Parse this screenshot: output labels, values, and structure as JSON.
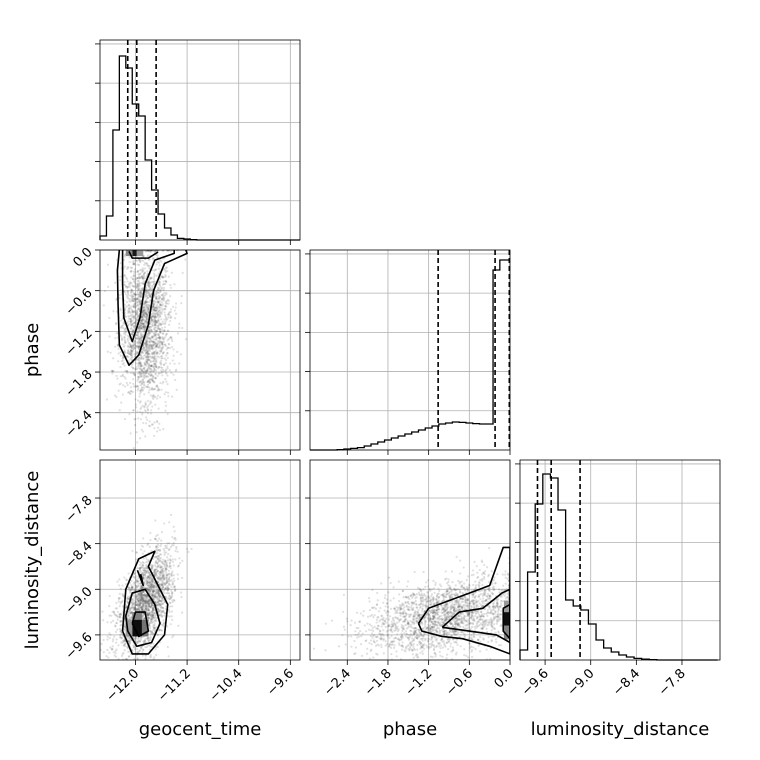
{
  "chart_data": {
    "type": "corner",
    "params": [
      "geocent_time",
      "phase",
      "luminosity_distance"
    ],
    "axis_labels": {
      "x": [
        "geocent_time",
        "phase",
        "luminosity_distance"
      ],
      "y": [
        "",
        "phase",
        "luminosity_distance"
      ]
    },
    "grid": true,
    "ranges": {
      "geocent_time": [
        -12.55,
        -9.45
      ],
      "phase": [
        -2.95,
        0.0
      ],
      "luminosity_distance": [
        -9.93,
        -7.3
      ]
    },
    "ticks": {
      "geocent_time": [
        "−12.0",
        "−11.2",
        "−10.4",
        "−9.6"
      ],
      "phase": [
        "−2.4",
        "−1.8",
        "−1.2",
        "−0.6",
        "0.0"
      ],
      "luminosity_distance": [
        "−9.6",
        "−9.0",
        "−8.4",
        "−7.8"
      ]
    },
    "tick_values": {
      "geocent_time": [
        -12.0,
        -11.2,
        -10.4,
        -9.6
      ],
      "phase": [
        -2.4,
        -1.8,
        -1.2,
        -0.6,
        0.0
      ],
      "luminosity_distance": [
        -9.6,
        -9.0,
        -8.4,
        -7.8
      ]
    },
    "quantiles": {
      "geocent_time": [
        -12.12,
        -11.98,
        -11.68
      ],
      "phase": [
        -1.06,
        -0.22,
        -0.01
      ],
      "luminosity_distance": [
        -9.7,
        -9.52,
        -9.14
      ]
    },
    "histograms": {
      "geocent_time": {
        "edges": [
          -12.55,
          -12.45,
          -12.35,
          -12.25,
          -12.15,
          -12.05,
          -11.95,
          -11.85,
          -11.75,
          -11.65,
          -11.55,
          -11.45,
          -11.35,
          -11.25,
          -11.15,
          -11.05,
          -10.95,
          -10.85,
          -10.75,
          -10.65,
          -10.55,
          -10.45,
          -10.35,
          -10.25,
          -10.15,
          -10.05,
          -9.95,
          -9.85,
          -9.75,
          -9.65,
          -9.55,
          -9.45
        ],
        "counts": [
          0.02,
          0.12,
          0.55,
          0.92,
          0.86,
          0.68,
          0.62,
          0.4,
          0.25,
          0.13,
          0.06,
          0.025,
          0.008,
          0.005,
          0.002,
          0,
          0,
          0,
          0,
          0,
          0,
          0,
          0,
          0,
          0,
          0,
          0,
          0,
          0,
          0,
          0
        ]
      },
      "phase": {
        "edges": [
          -2.95,
          -2.85,
          -2.75,
          -2.65,
          -2.55,
          -2.45,
          -2.35,
          -2.25,
          -2.15,
          -2.05,
          -1.95,
          -1.85,
          -1.75,
          -1.65,
          -1.55,
          -1.45,
          -1.35,
          -1.25,
          -1.15,
          -1.05,
          -0.95,
          -0.85,
          -0.75,
          -0.65,
          -0.55,
          -0.45,
          -0.35,
          -0.25,
          -0.15,
          -0.05,
          0.0
        ],
        "counts": [
          0,
          0,
          0,
          0,
          0.002,
          0.005,
          0.008,
          0.012,
          0.02,
          0.03,
          0.04,
          0.05,
          0.06,
          0.07,
          0.08,
          0.09,
          0.1,
          0.11,
          0.12,
          0.13,
          0.135,
          0.14,
          0.138,
          0.135,
          0.132,
          0.13,
          0.13,
          0.9,
          0.95,
          0.95
        ]
      },
      "luminosity_distance": {
        "edges": [
          -9.93,
          -9.83,
          -9.73,
          -9.63,
          -9.53,
          -9.43,
          -9.33,
          -9.23,
          -9.13,
          -9.03,
          -8.93,
          -8.83,
          -8.73,
          -8.63,
          -8.53,
          -8.43,
          -8.33,
          -8.23,
          -8.13,
          -8.03,
          -7.93,
          -7.83,
          -7.73,
          -7.63,
          -7.53,
          -7.43,
          -7.33
        ],
        "counts": [
          0.05,
          0.44,
          0.78,
          0.93,
          0.91,
          0.75,
          0.3,
          0.27,
          0.25,
          0.18,
          0.1,
          0.06,
          0.04,
          0.025,
          0.015,
          0.008,
          0.004,
          0.002,
          0,
          0,
          0,
          0,
          0,
          0,
          0,
          0
        ]
      }
    },
    "scatter_spread": {
      "geocent_time__phase": {
        "center": [
          -11.85,
          -1.1
        ],
        "sd": [
          0.2,
          0.6
        ]
      },
      "geocent_time__luminosity_distance": {
        "center": [
          -11.85,
          -9.2
        ],
        "sd": [
          0.22,
          0.35
        ],
        "corr": 0.55
      },
      "phase__luminosity_distance": {
        "center": [
          -0.9,
          -9.35
        ],
        "sd": [
          0.6,
          0.25
        ],
        "corr": 0.4
      }
    },
    "contours": {
      "geocent_time__phase": [
        [
          [
            -12.25,
            0.0
          ],
          [
            -12.28,
            -0.3
          ],
          [
            -12.27,
            -0.8
          ],
          [
            -12.25,
            -1.4
          ],
          [
            -12.1,
            -1.7
          ],
          [
            -11.95,
            -1.55
          ],
          [
            -11.8,
            -1.1
          ],
          [
            -11.72,
            -0.6
          ],
          [
            -11.55,
            -0.2
          ],
          [
            -11.2,
            -0.05
          ],
          [
            -11.22,
            0.0
          ]
        ],
        [
          [
            -12.2,
            0.0
          ],
          [
            -12.2,
            -0.5
          ],
          [
            -12.18,
            -1.0
          ],
          [
            -12.05,
            -1.35
          ],
          [
            -11.93,
            -1.0
          ],
          [
            -11.85,
            -0.5
          ],
          [
            -11.7,
            -0.15
          ],
          [
            -11.4,
            -0.05
          ],
          [
            -11.4,
            0.0
          ]
        ],
        [
          [
            -12.1,
            -0.02
          ],
          [
            -12.05,
            -0.12
          ],
          [
            -11.8,
            -0.12
          ],
          [
            -11.65,
            -0.03
          ]
        ]
      ],
      "geocent_time__luminosity_distance": [
        [
          [
            -12.2,
            -9.55
          ],
          [
            -12.05,
            -9.85
          ],
          [
            -11.8,
            -9.85
          ],
          [
            -11.55,
            -9.6
          ],
          [
            -11.5,
            -9.2
          ],
          [
            -11.65,
            -8.95
          ],
          [
            -11.8,
            -8.7
          ],
          [
            -11.7,
            -8.5
          ],
          [
            -11.95,
            -8.6
          ],
          [
            -12.15,
            -9.0
          ],
          [
            -12.2,
            -9.55
          ]
        ],
        [
          [
            -12.12,
            -9.55
          ],
          [
            -11.98,
            -9.75
          ],
          [
            -11.75,
            -9.7
          ],
          [
            -11.62,
            -9.45
          ],
          [
            -11.7,
            -9.2
          ],
          [
            -11.85,
            -9.0
          ],
          [
            -12.05,
            -9.05
          ],
          [
            -12.15,
            -9.35
          ],
          [
            -12.12,
            -9.55
          ]
        ],
        [
          [
            -11.97,
            -8.75
          ],
          [
            -11.88,
            -8.95
          ],
          [
            -11.92,
            -8.8
          ]
        ],
        [
          [
            -12.05,
            -9.45
          ],
          [
            -11.95,
            -9.62
          ],
          [
            -11.8,
            -9.55
          ],
          [
            -11.85,
            -9.3
          ],
          [
            -12.0,
            -9.3
          ],
          [
            -12.05,
            -9.45
          ]
        ]
      ],
      "phase__luminosity_distance": [
        [
          [
            -1.35,
            -9.45
          ],
          [
            -1.2,
            -9.25
          ],
          [
            -0.9,
            -9.15
          ],
          [
            -0.6,
            -9.05
          ],
          [
            -0.3,
            -8.95
          ],
          [
            -0.1,
            -8.45
          ],
          [
            0.0,
            -8.45
          ],
          [
            0.0,
            -9.85
          ],
          [
            -0.3,
            -9.75
          ],
          [
            -0.7,
            -9.65
          ],
          [
            -1.0,
            -9.62
          ],
          [
            -1.3,
            -9.55
          ],
          [
            -1.35,
            -9.45
          ]
        ],
        [
          [
            -1.0,
            -9.5
          ],
          [
            -0.75,
            -9.3
          ],
          [
            -0.4,
            -9.25
          ],
          [
            -0.12,
            -9.05
          ],
          [
            0.0,
            -9.0
          ],
          [
            0.0,
            -9.7
          ],
          [
            -0.2,
            -9.6
          ],
          [
            -0.6,
            -9.55
          ],
          [
            -1.0,
            -9.5
          ]
        ],
        [
          [
            -0.1,
            -9.25
          ],
          [
            0.0,
            -9.2
          ],
          [
            0.0,
            -9.65
          ],
          [
            -0.1,
            -9.55
          ],
          [
            -0.1,
            -9.25
          ]
        ]
      ]
    },
    "density_cells": {
      "geocent_time__phase": [
        {
          "x": [
            -12.05,
            -11.98
          ],
          "y": [
            -0.09,
            0.0
          ],
          "level": 0.9
        },
        {
          "x": [
            -12.15,
            -12.05
          ],
          "y": [
            -0.09,
            0.0
          ],
          "level": 0.45
        },
        {
          "x": [
            -11.98,
            -11.88
          ],
          "y": [
            -0.09,
            0.0
          ],
          "level": 0.4
        }
      ],
      "geocent_time__luminosity_distance": [
        {
          "x": [
            -12.05,
            -11.9
          ],
          "y": [
            -9.62,
            -9.4
          ],
          "level": 0.95
        },
        {
          "x": [
            -11.9,
            -11.8
          ],
          "y": [
            -9.62,
            -9.4
          ],
          "level": 0.55
        },
        {
          "x": [
            -12.05,
            -11.9
          ],
          "y": [
            -9.4,
            -9.3
          ],
          "level": 0.5
        },
        {
          "x": [
            -12.15,
            -12.05
          ],
          "y": [
            -9.62,
            -9.4
          ],
          "level": 0.4
        }
      ],
      "phase__luminosity_distance": [
        {
          "x": [
            -0.09,
            0.0
          ],
          "y": [
            -9.48,
            -9.3
          ],
          "level": 0.95
        },
        {
          "x": [
            -0.09,
            0.0
          ],
          "y": [
            -9.66,
            -9.48
          ],
          "level": 0.5
        },
        {
          "x": [
            -0.09,
            0.0
          ],
          "y": [
            -9.3,
            -9.15
          ],
          "level": 0.4
        }
      ]
    }
  }
}
